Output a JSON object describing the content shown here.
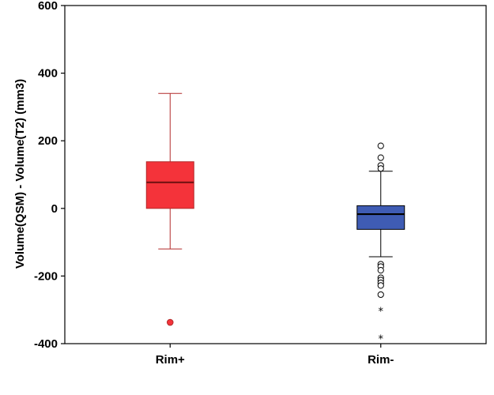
{
  "chart_data": {
    "type": "boxplot",
    "title": "",
    "xlabel": "",
    "ylabel": "Volume(QSM) - Volume(T2) (mm3)",
    "ylim": [
      -400,
      600
    ],
    "yticks": [
      -400,
      -200,
      0,
      200,
      400,
      600
    ],
    "ytick_labels": [
      "-400",
      "-200",
      "0",
      "200",
      "400",
      "600"
    ],
    "grid": false,
    "categories": [
      "Rim+",
      "Rim-"
    ],
    "groups": [
      {
        "name": "Rim+",
        "fill_color": "#f4333a",
        "line_color": "#b22a2a",
        "whisker_low": -120,
        "q1": 0,
        "median": 77,
        "q3": 138,
        "whisker_high": 340,
        "outliers": [],
        "extremes": [
          -337
        ],
        "extreme_marker": "filled-circle"
      },
      {
        "name": "Rim-",
        "fill_color": "#3f5cb4",
        "line_color": "#000000",
        "whisker_low": -143,
        "q1": -62,
        "median": -17,
        "q3": 8,
        "whisker_high": 110,
        "outliers": [
          185,
          150,
          127,
          118,
          -165,
          -172,
          -183,
          -205,
          -212,
          -220,
          -228,
          -255
        ],
        "extremes": [
          -303,
          -385
        ],
        "extreme_marker": "star"
      }
    ]
  }
}
